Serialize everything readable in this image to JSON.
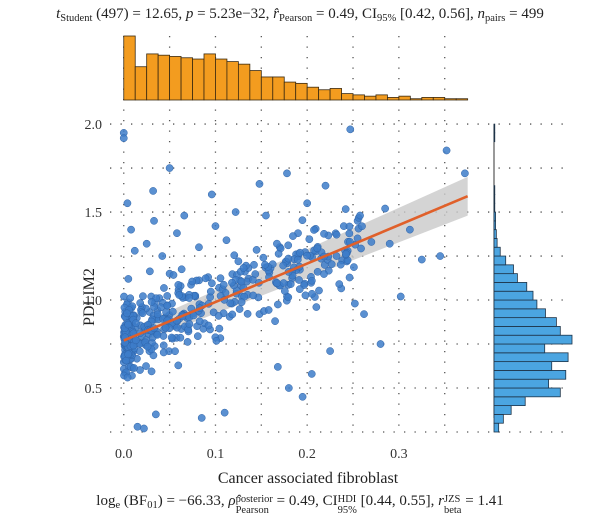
{
  "header": {
    "t_symbol": "t",
    "t_sub": "Student",
    "t_rest": " (497) = 12.65, ",
    "p_symbol": "p",
    "p_rest": " = 5.23e−32, ",
    "r_symbol": "r̂",
    "r_sub": "Pearson",
    "r_rest": " = 0.49, CI",
    "ci_sub": "95%",
    "ci_rest": " [0.42, 0.56], ",
    "n_symbol": "n",
    "n_sub": "pairs",
    "n_rest": " = 499"
  },
  "footer": {
    "log_text": "log",
    "log_sub": "e",
    "bf_text": " (BF",
    "bf_sub": "01",
    "bf_rest": ") = −66.33, ",
    "rho_symbol": "ρ̂",
    "rho_sup": "posterior",
    "rho_sub": "Pearson",
    "rho_rest": " = 0.49, CI",
    "hdi_sup": "HDI",
    "hdi_sub": "95%",
    "hdi_rest": " [0.44, 0.55], ",
    "rbeta_symbol": "r",
    "rbeta_sup": "JZS",
    "rbeta_sub": "beta",
    "rbeta_rest": " = 1.41"
  },
  "chart_data": {
    "type": "scatter",
    "xlabel": "Cancer associated fibroblast",
    "ylabel": "PDLIM2",
    "xlim": [
      -0.015,
      0.395
    ],
    "ylim": [
      0.25,
      2.08
    ],
    "x_ticks": [
      0.0,
      0.1,
      0.2,
      0.3
    ],
    "x_tick_labels": [
      "0.0",
      "0.1",
      "0.2",
      "0.3"
    ],
    "y_ticks": [
      0.5,
      1.0,
      1.5,
      2.0
    ],
    "y_tick_labels": [
      "0.5",
      "1.0",
      "1.5",
      "2.0"
    ],
    "grid": "dotted",
    "n_points": 499,
    "regression": {
      "x": [
        0.0,
        0.375
      ],
      "y": [
        0.77,
        1.59
      ],
      "ci_lower": [
        0.72,
        1.48
      ],
      "ci_upper": [
        0.82,
        1.7
      ],
      "color": "#e0602a"
    },
    "point_color": "#3d7cc9",
    "marginal_x_hist": {
      "color": "#f39c1f",
      "bin_width": 0.0125,
      "relative_counts": [
        1.0,
        0.52,
        0.72,
        0.7,
        0.68,
        0.66,
        0.64,
        0.72,
        0.64,
        0.6,
        0.56,
        0.46,
        0.36,
        0.36,
        0.28,
        0.26,
        0.2,
        0.16,
        0.18,
        0.1,
        0.08,
        0.06,
        0.08,
        0.04,
        0.06,
        0.02,
        0.04,
        0.04,
        0.02,
        0.02
      ]
    },
    "marginal_y_hist": {
      "color": "#4ba5e1",
      "bin_width": 0.05,
      "bin_start": 0.25,
      "relative_counts": [
        0.06,
        0.12,
        0.22,
        0.4,
        0.85,
        0.7,
        0.92,
        0.74,
        0.95,
        0.65,
        1.0,
        0.85,
        0.8,
        0.66,
        0.55,
        0.5,
        0.42,
        0.3,
        0.25,
        0.15,
        0.08,
        0.04,
        0.03,
        0.02,
        0.02,
        0.01,
        0.01,
        0.01,
        0.0,
        0.0,
        0.0,
        0.0,
        0.0,
        0.01,
        0.01,
        0.0,
        0.0
      ]
    },
    "points": [
      [
        0.0,
        1.95
      ],
      [
        0.0,
        1.92
      ],
      [
        0.247,
        1.97
      ],
      [
        0.372,
        1.72
      ],
      [
        0.352,
        1.85
      ],
      [
        0.29,
        1.32
      ],
      [
        0.325,
        1.23
      ],
      [
        0.302,
        1.02
      ],
      [
        0.18,
        0.5
      ],
      [
        0.195,
        0.45
      ],
      [
        0.168,
        0.62
      ],
      [
        0.205,
        0.58
      ],
      [
        0.11,
        0.36
      ],
      [
        0.085,
        0.33
      ],
      [
        0.035,
        0.35
      ],
      [
        0.015,
        0.28
      ],
      [
        0.022,
        0.27
      ],
      [
        0.252,
        0.98
      ],
      [
        0.262,
        0.92
      ],
      [
        0.28,
        0.75
      ],
      [
        0.225,
        0.71
      ],
      [
        0.2,
        1.55
      ],
      [
        0.155,
        1.48
      ],
      [
        0.27,
        1.33
      ],
      [
        0.24,
        1.42
      ],
      [
        0.19,
        1.38
      ],
      [
        0.16,
        1.18
      ],
      [
        0.232,
        1.25
      ],
      [
        0.142,
        1.2
      ],
      [
        0.128,
        1.08
      ],
      [
        0.178,
        1.02
      ],
      [
        0.148,
        0.92
      ],
      [
        0.165,
        0.88
      ],
      [
        0.21,
        0.96
      ],
      [
        0.05,
        1.15
      ],
      [
        0.062,
        1.08
      ],
      [
        0.078,
        1.02
      ],
      [
        0.092,
        1.13
      ],
      [
        0.104,
        1.07
      ],
      [
        0.03,
        1.02
      ],
      [
        0.02,
        0.96
      ],
      [
        0.045,
        0.9
      ],
      [
        0.07,
        0.85
      ],
      [
        0.098,
        0.93
      ],
      [
        0.118,
        0.98
      ],
      [
        0.135,
        1.03
      ],
      [
        0.005,
        1.12
      ],
      [
        0.012,
        1.28
      ],
      [
        0.025,
        1.32
      ],
      [
        0.042,
        1.25
      ],
      [
        0.058,
        1.38
      ],
      [
        0.082,
        1.3
      ],
      [
        0.112,
        1.34
      ],
      [
        0.125,
        1.22
      ],
      [
        0.008,
        1.4
      ],
      [
        0.033,
        1.45
      ],
      [
        0.066,
        1.48
      ],
      [
        0.1,
        1.42
      ],
      [
        0.122,
        1.5
      ],
      [
        0.004,
        1.55
      ],
      [
        0.032,
        1.62
      ],
      [
        0.096,
        1.6
      ],
      [
        0.05,
        1.75
      ],
      [
        0.148,
        1.66
      ],
      [
        0.22,
        1.65
      ],
      [
        0.178,
        1.72
      ],
      [
        0.255,
        1.45
      ],
      [
        0.312,
        1.4
      ],
      [
        0.345,
        1.25
      ],
      [
        0.285,
        1.52
      ]
    ]
  }
}
